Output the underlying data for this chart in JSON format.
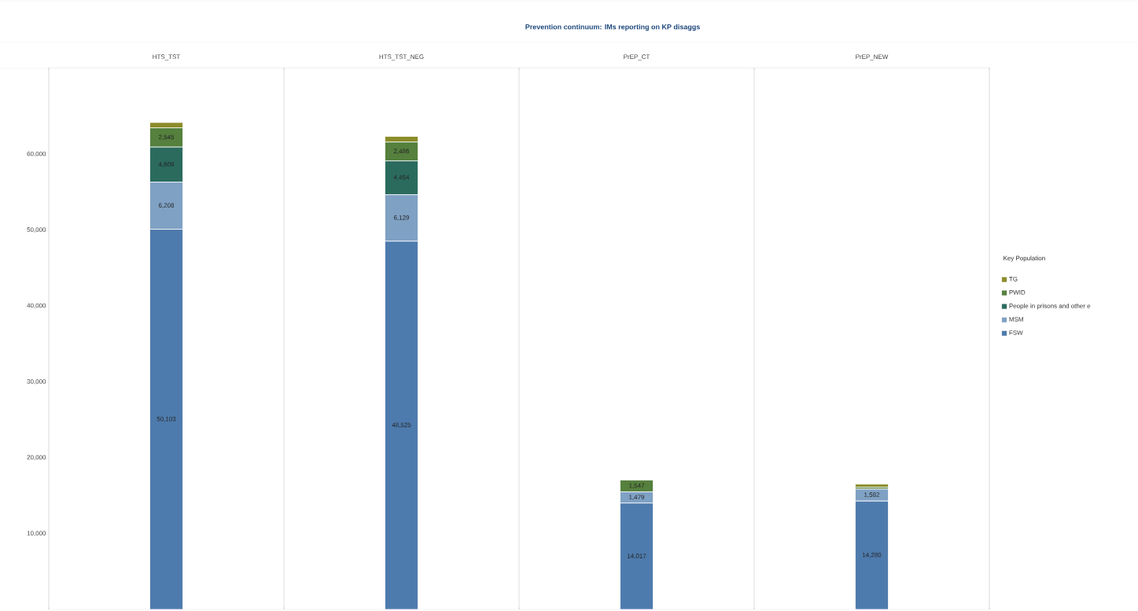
{
  "chart_data": {
    "type": "bar",
    "title": "Prevention continuum: IMs reporting on KP disaggs",
    "stacked": true,
    "legend": "right",
    "legend_title": "Key Population",
    "categories": [
      "HTS_TST",
      "HTS_TST_NEG",
      "PrEP_CT",
      "PrEP_NEW"
    ],
    "ylim": [
      0,
      71400
    ],
    "yticks": [
      {
        "value": 10000,
        "label": "10,000"
      },
      {
        "value": 20000,
        "label": "20,000"
      },
      {
        "value": 30000,
        "label": "30,000"
      },
      {
        "value": 40000,
        "label": "40,000"
      },
      {
        "value": 50000,
        "label": "50,000"
      },
      {
        "value": 60000,
        "label": "60,000"
      }
    ],
    "grid": false,
    "series": [
      {
        "name": "FSW",
        "color": "#4e7bad",
        "values": [
          50103,
          48525,
          14017,
          14280
        ],
        "value_labels": [
          "50,103",
          "48,525",
          "14,017",
          "14,280"
        ]
      },
      {
        "name": "MSM",
        "color": "#7fa1c4",
        "values": [
          6208,
          6129,
          1479,
          1582
        ],
        "value_labels": [
          "6,208",
          "6,129",
          "1,479",
          "1,582"
        ]
      },
      {
        "name": "People in prisons and other e",
        "color": "#2b6b5e",
        "values": [
          4609,
          4454,
          null,
          null
        ],
        "value_labels": [
          "4,609",
          "4,454",
          null,
          null
        ]
      },
      {
        "name": "PWID",
        "color": "#55803d",
        "values": [
          2545,
          2486,
          1547,
          250
        ],
        "value_labels": [
          "2,545",
          "2,486",
          "1,547",
          null
        ]
      },
      {
        "name": "TG",
        "color": "#8c8c2a",
        "values": [
          700,
          750,
          null,
          400
        ],
        "value_labels": [
          null,
          null,
          null,
          null
        ]
      }
    ]
  }
}
